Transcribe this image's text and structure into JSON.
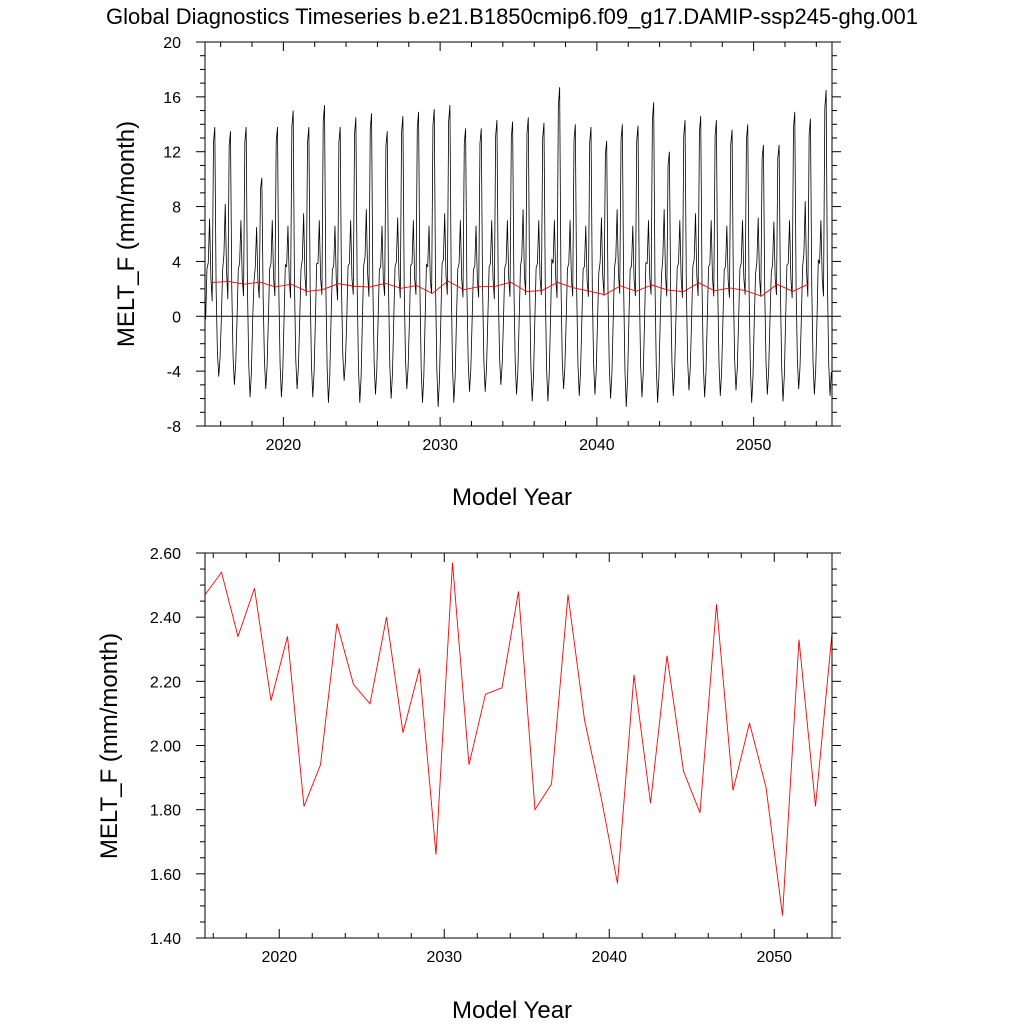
{
  "figure": {
    "title": "Global Diagnostics Timeseries b.e21.B1850cmip6.f09_g17.DAMIP-ssp245-ghg.001"
  },
  "colors": {
    "monthly": "#000000",
    "annual": "#ff0000",
    "axes": "#000000"
  },
  "chart_data": [
    {
      "type": "line",
      "xlabel": "Model Year",
      "ylabel": "MELT_F (mm/month)",
      "xlim": [
        2015,
        2055
      ],
      "ylim": [
        -8,
        20
      ],
      "x_ticks": [
        2020,
        2030,
        2040,
        2050
      ],
      "y_ticks": [
        -8,
        -4,
        0,
        4,
        8,
        12,
        16,
        20
      ],
      "y_tick_labels": [
        "-8",
        "-4",
        "0",
        "4",
        "8",
        "12",
        "16",
        "20"
      ],
      "reference_line": 0,
      "grid": false,
      "series": [
        {
          "kind": "monthly-seasonal-cycle",
          "start_year": 2015,
          "years": 40,
          "annual_peaks": [
            13.8,
            13.5,
            13.8,
            10.1,
            13.8,
            15.0,
            13.8,
            15.4,
            13.8,
            14.5,
            14.8,
            13.5,
            14.6,
            14.9,
            15.1,
            15.4,
            13.7,
            13.7,
            14.3,
            14.2,
            14.5,
            14.1,
            16.7,
            14.0,
            13.8,
            12.8,
            14.0,
            13.9,
            15.6,
            12.0,
            14.3,
            14.6,
            14.3,
            13.6,
            14.0,
            12.5,
            12.5,
            14.9,
            14.4,
            16.5
          ],
          "annual_troughs": [
            -4.4,
            -5.0,
            -5.9,
            -5.3,
            -5.9,
            -5.3,
            -5.9,
            -6.3,
            -4.7,
            -6.3,
            -5.7,
            -6.0,
            -5.3,
            -6.3,
            -6.6,
            -6.3,
            -5.5,
            -5.5,
            -5.0,
            -5.7,
            -6.2,
            -6.2,
            -5.3,
            -5.8,
            -5.7,
            -6.0,
            -6.6,
            -5.9,
            -6.3,
            -5.8,
            -5.4,
            -5.9,
            -5.8,
            -5.4,
            -6.3,
            -5.7,
            -6.2,
            -5.3,
            -5.7,
            -5.8
          ],
          "secondary_peaks": [
            7.1,
            8.2,
            7.0,
            6.5,
            7.0,
            6.6,
            7.5,
            7.0,
            6.6,
            7.0,
            7.8,
            6.6,
            7.2,
            7.0,
            6.6,
            7.5,
            7.0,
            6.6,
            7.0,
            7.0,
            7.8,
            7.0,
            7.0,
            7.0,
            6.6,
            7.2,
            7.8,
            6.6,
            7.0,
            7.8,
            7.0,
            7.5,
            7.0,
            6.6,
            7.0,
            7.2,
            6.9,
            7.0,
            8.4,
            7.0
          ]
        },
        {
          "kind": "annual-mean",
          "x": [
            2015.5,
            2016.5,
            2017.5,
            2018.5,
            2019.5,
            2020.5,
            2021.5,
            2022.5,
            2023.5,
            2024.5,
            2025.5,
            2026.5,
            2027.5,
            2028.5,
            2029.5,
            2030.5,
            2031.5,
            2032.5,
            2033.5,
            2034.5,
            2035.5,
            2036.5,
            2037.5,
            2038.5,
            2039.5,
            2040.5,
            2041.5,
            2042.5,
            2043.5,
            2044.5,
            2045.5,
            2046.5,
            2047.5,
            2048.5,
            2049.5,
            2050.5,
            2051.5,
            2052.5,
            2053.5
          ],
          "values": [
            2.47,
            2.54,
            2.34,
            2.49,
            2.14,
            2.34,
            1.81,
            1.94,
            2.38,
            2.19,
            2.13,
            2.4,
            2.04,
            2.24,
            1.66,
            2.57,
            1.94,
            2.16,
            2.18,
            2.48,
            1.8,
            1.88,
            2.47,
            2.08,
            1.84,
            1.57,
            2.22,
            1.82,
            2.28,
            1.92,
            1.79,
            2.44,
            1.86,
            2.07,
            1.87,
            1.47,
            2.33,
            1.81,
            2.35
          ]
        }
      ]
    },
    {
      "type": "line",
      "xlabel": "Model Year",
      "ylabel": "MELT_F (mm/month)",
      "xlim": [
        2015.5,
        2053.5
      ],
      "ylim": [
        1.4,
        2.6
      ],
      "x_ticks": [
        2020,
        2030,
        2040,
        2050
      ],
      "y_ticks": [
        1.4,
        1.6,
        1.8,
        2.0,
        2.2,
        2.4,
        2.6
      ],
      "y_tick_labels": [
        "1.40",
        "1.60",
        "1.80",
        "2.00",
        "2.20",
        "2.40",
        "2.60"
      ],
      "grid": false,
      "series": [
        {
          "kind": "annual-mean",
          "x": [
            2015.5,
            2016.5,
            2017.5,
            2018.5,
            2019.5,
            2020.5,
            2021.5,
            2022.5,
            2023.5,
            2024.5,
            2025.5,
            2026.5,
            2027.5,
            2028.5,
            2029.5,
            2030.5,
            2031.5,
            2032.5,
            2033.5,
            2034.5,
            2035.5,
            2036.5,
            2037.5,
            2038.5,
            2039.5,
            2040.5,
            2041.5,
            2042.5,
            2043.5,
            2044.5,
            2045.5,
            2046.5,
            2047.5,
            2048.5,
            2049.5,
            2050.5,
            2051.5,
            2052.5,
            2053.5
          ],
          "values": [
            2.47,
            2.54,
            2.34,
            2.49,
            2.14,
            2.34,
            1.81,
            1.94,
            2.38,
            2.19,
            2.13,
            2.4,
            2.04,
            2.24,
            1.66,
            2.57,
            1.94,
            2.16,
            2.18,
            2.48,
            1.8,
            1.88,
            2.47,
            2.08,
            1.84,
            1.57,
            2.22,
            1.82,
            2.28,
            1.92,
            1.79,
            2.44,
            1.86,
            2.07,
            1.87,
            1.47,
            2.33,
            1.81,
            2.35
          ]
        }
      ]
    }
  ]
}
